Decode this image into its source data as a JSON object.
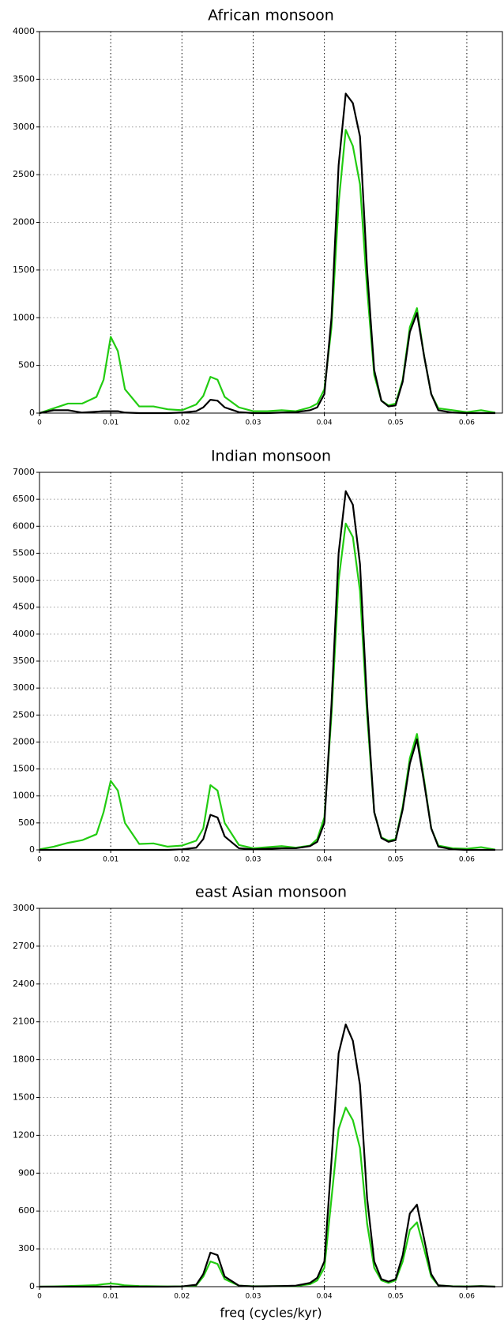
{
  "chart_data": [
    {
      "type": "line",
      "title": "African monsoon",
      "x": [
        0,
        0.002,
        0.004,
        0.006,
        0.008,
        0.009,
        0.01,
        0.011,
        0.012,
        0.014,
        0.016,
        0.018,
        0.02,
        0.022,
        0.023,
        0.024,
        0.025,
        0.026,
        0.028,
        0.03,
        0.032,
        0.034,
        0.036,
        0.038,
        0.039,
        0.04,
        0.041,
        0.042,
        0.043,
        0.044,
        0.045,
        0.046,
        0.047,
        0.048,
        0.049,
        0.05,
        0.051,
        0.052,
        0.053,
        0.054,
        0.055,
        0.056,
        0.058,
        0.06,
        0.062,
        0.064
      ],
      "series": [
        {
          "color": "#22cc11",
          "values": [
            0,
            50,
            100,
            100,
            170,
            350,
            800,
            650,
            250,
            70,
            70,
            40,
            30,
            90,
            180,
            380,
            350,
            170,
            60,
            20,
            20,
            30,
            20,
            60,
            100,
            250,
            900,
            2200,
            2970,
            2800,
            2400,
            1300,
            400,
            130,
            80,
            100,
            350,
            900,
            1100,
            600,
            200,
            50,
            30,
            10,
            30,
            5
          ]
        },
        {
          "color": "#000000",
          "values": [
            0,
            30,
            30,
            5,
            15,
            20,
            20,
            20,
            5,
            0,
            0,
            0,
            5,
            20,
            60,
            140,
            130,
            60,
            10,
            0,
            0,
            5,
            10,
            30,
            60,
            200,
            1000,
            2600,
            3350,
            3250,
            2900,
            1500,
            450,
            130,
            70,
            80,
            330,
            850,
            1050,
            600,
            200,
            30,
            5,
            0,
            0,
            0
          ]
        }
      ],
      "xlim": [
        0,
        0.065
      ],
      "xticks": [
        0,
        0.01,
        0.02,
        0.03,
        0.04,
        0.05,
        0.06
      ],
      "ylim": [
        0,
        4000
      ],
      "yticks": [
        0,
        500,
        1000,
        1500,
        2000,
        2500,
        3000,
        3500,
        4000
      ],
      "grid": true
    },
    {
      "type": "line",
      "title": "Indian monsoon",
      "x": [
        0,
        0.002,
        0.004,
        0.006,
        0.008,
        0.009,
        0.01,
        0.011,
        0.012,
        0.014,
        0.016,
        0.018,
        0.02,
        0.022,
        0.023,
        0.024,
        0.025,
        0.026,
        0.028,
        0.03,
        0.032,
        0.034,
        0.036,
        0.038,
        0.039,
        0.04,
        0.041,
        0.042,
        0.043,
        0.044,
        0.045,
        0.046,
        0.047,
        0.048,
        0.049,
        0.05,
        0.051,
        0.052,
        0.053,
        0.054,
        0.055,
        0.056,
        0.058,
        0.06,
        0.062,
        0.064
      ],
      "series": [
        {
          "color": "#22cc11",
          "values": [
            10,
            60,
            130,
            180,
            290,
            700,
            1280,
            1100,
            500,
            110,
            120,
            60,
            80,
            170,
            400,
            1200,
            1100,
            500,
            90,
            30,
            50,
            70,
            40,
            80,
            200,
            600,
            2500,
            5000,
            6050,
            5800,
            4800,
            2500,
            700,
            230,
            170,
            200,
            800,
            1700,
            2150,
            1300,
            400,
            80,
            30,
            20,
            50,
            5
          ]
        },
        {
          "color": "#000000",
          "values": [
            0,
            0,
            0,
            0,
            0,
            0,
            0,
            0,
            0,
            0,
            0,
            0,
            10,
            40,
            200,
            650,
            600,
            250,
            30,
            10,
            20,
            30,
            30,
            70,
            150,
            500,
            2700,
            5500,
            6650,
            6400,
            5300,
            2700,
            700,
            220,
            150,
            180,
            750,
            1600,
            2050,
            1250,
            400,
            60,
            10,
            0,
            0,
            0
          ]
        }
      ],
      "xlim": [
        0,
        0.065
      ],
      "xticks": [
        0,
        0.01,
        0.02,
        0.03,
        0.04,
        0.05,
        0.06
      ],
      "ylim": [
        0,
        7000
      ],
      "yticks": [
        0,
        500,
        1000,
        1500,
        2000,
        2500,
        3000,
        3500,
        4000,
        4500,
        5000,
        5500,
        6000,
        6500,
        7000
      ],
      "grid": true
    },
    {
      "type": "line",
      "title": "east Asian monsoon",
      "xlabel": "freq (cycles/kyr)",
      "x": [
        0,
        0.002,
        0.004,
        0.006,
        0.008,
        0.009,
        0.01,
        0.011,
        0.012,
        0.014,
        0.016,
        0.018,
        0.02,
        0.022,
        0.023,
        0.024,
        0.025,
        0.026,
        0.028,
        0.03,
        0.032,
        0.034,
        0.036,
        0.038,
        0.039,
        0.04,
        0.041,
        0.042,
        0.043,
        0.044,
        0.045,
        0.046,
        0.047,
        0.048,
        0.049,
        0.05,
        0.051,
        0.052,
        0.053,
        0.054,
        0.055,
        0.056,
        0.058,
        0.06,
        0.062,
        0.064
      ],
      "series": [
        {
          "color": "#22cc11",
          "values": [
            0,
            2,
            5,
            8,
            12,
            20,
            25,
            20,
            10,
            5,
            3,
            2,
            2,
            10,
            80,
            200,
            180,
            60,
            8,
            3,
            3,
            5,
            5,
            20,
            50,
            150,
            700,
            1250,
            1420,
            1320,
            1100,
            500,
            150,
            50,
            30,
            50,
            200,
            450,
            510,
            300,
            80,
            10,
            3,
            2,
            5,
            0
          ]
        },
        {
          "color": "#000000",
          "values": [
            0,
            0,
            0,
            0,
            0,
            0,
            0,
            0,
            0,
            0,
            0,
            0,
            2,
            15,
            100,
            270,
            250,
            80,
            8,
            2,
            3,
            5,
            8,
            30,
            70,
            200,
            1000,
            1850,
            2080,
            1950,
            1600,
            700,
            200,
            60,
            40,
            60,
            250,
            580,
            650,
            380,
            100,
            10,
            2,
            0,
            3,
            0
          ]
        }
      ],
      "xlim": [
        0,
        0.065
      ],
      "xticks": [
        0,
        0.01,
        0.02,
        0.03,
        0.04,
        0.05,
        0.06
      ],
      "ylim": [
        0,
        3000
      ],
      "yticks": [
        0,
        300,
        600,
        900,
        1200,
        1500,
        1800,
        2100,
        2400,
        2700,
        3000
      ],
      "grid": true
    }
  ]
}
